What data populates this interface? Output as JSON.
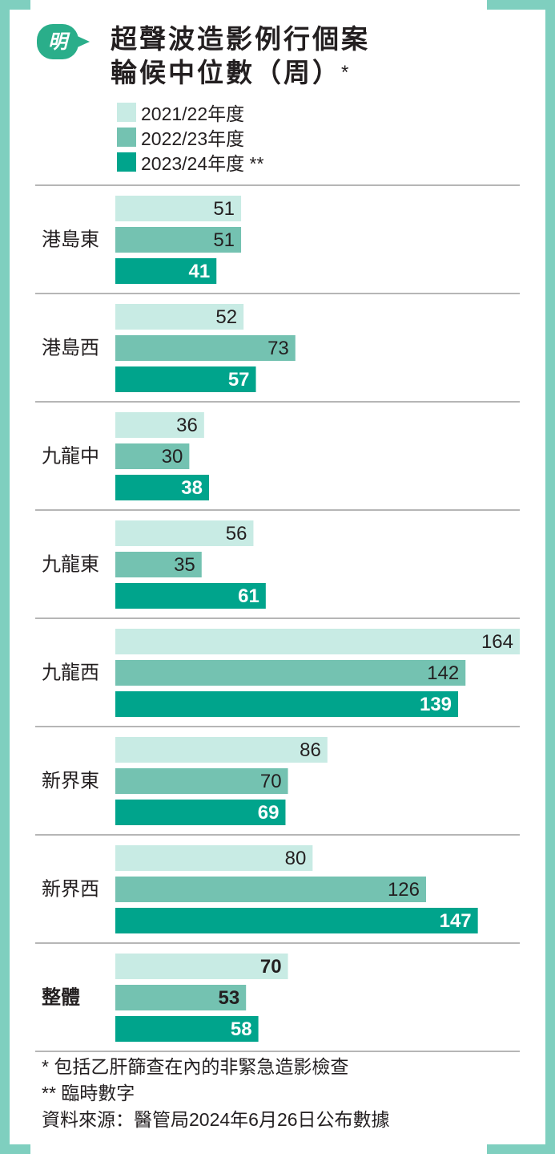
{
  "logo": {
    "text": "明",
    "color": "#2aae8a"
  },
  "title": {
    "line1": "超聲波造影例行個案",
    "line2": "輪候中位數（周）",
    "star": "*"
  },
  "legend": [
    {
      "label": "2021/22年度",
      "color": "#c8ebe4"
    },
    {
      "label": "2022/23年度",
      "color": "#74c2b1"
    },
    {
      "label": "2023/24年度 **",
      "color": "#00a48c"
    }
  ],
  "chart_data": {
    "type": "bar",
    "orientation": "horizontal",
    "categories": [
      "港島東",
      "港島西",
      "九龍中",
      "九龍東",
      "九龍西",
      "新界東",
      "新界西",
      "整體"
    ],
    "series": [
      {
        "name": "2021/22年度",
        "color": "#c8ebe4",
        "values": [
          51,
          52,
          36,
          56,
          164,
          86,
          80,
          70
        ]
      },
      {
        "name": "2022/23年度",
        "color": "#74c2b1",
        "values": [
          51,
          73,
          30,
          35,
          142,
          70,
          126,
          53
        ]
      },
      {
        "name": "2023/24年度 **",
        "color": "#00a48c",
        "values": [
          41,
          57,
          38,
          61,
          139,
          69,
          147,
          58
        ]
      }
    ],
    "xlim": [
      0,
      164
    ],
    "emphasized_category": "整體",
    "grid": false,
    "legend_position": "top-left"
  },
  "footnotes": [
    "* 包括乙肝篩查在內的非緊急造影檢查",
    "** 臨時數字",
    "資料來源：醫管局2024年6月26日公布數據"
  ]
}
